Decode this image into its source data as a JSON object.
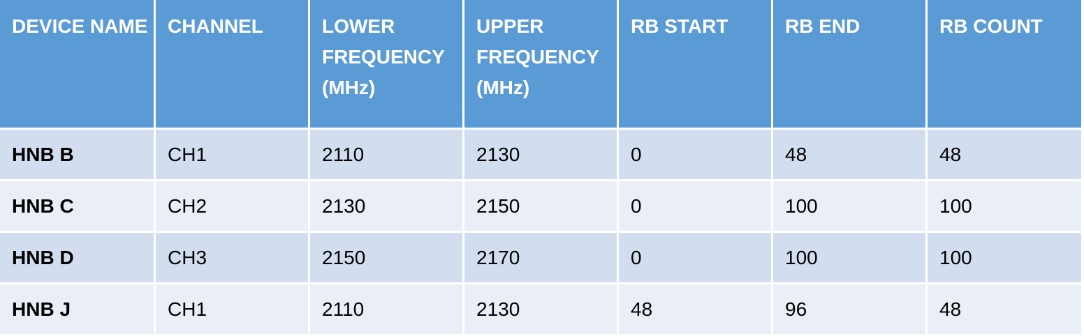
{
  "table": {
    "header": [
      "DEVICE NAME",
      "CHANNEL",
      "LOWER FREQUENCY (MHz)",
      "UPPER FREQUENCY (MHz)",
      "RB START",
      "RB END",
      "RB COUNT"
    ],
    "rows": [
      [
        "HNB B",
        "CH1",
        2110,
        2130,
        0,
        48,
        48
      ],
      [
        "HNB C",
        "CH2",
        2130,
        2150,
        0,
        100,
        100
      ],
      [
        "HNB D",
        "CH3",
        2150,
        2170,
        0,
        100,
        100
      ],
      [
        "HNB J",
        "CH1",
        2110,
        2130,
        48,
        96,
        48
      ]
    ]
  }
}
